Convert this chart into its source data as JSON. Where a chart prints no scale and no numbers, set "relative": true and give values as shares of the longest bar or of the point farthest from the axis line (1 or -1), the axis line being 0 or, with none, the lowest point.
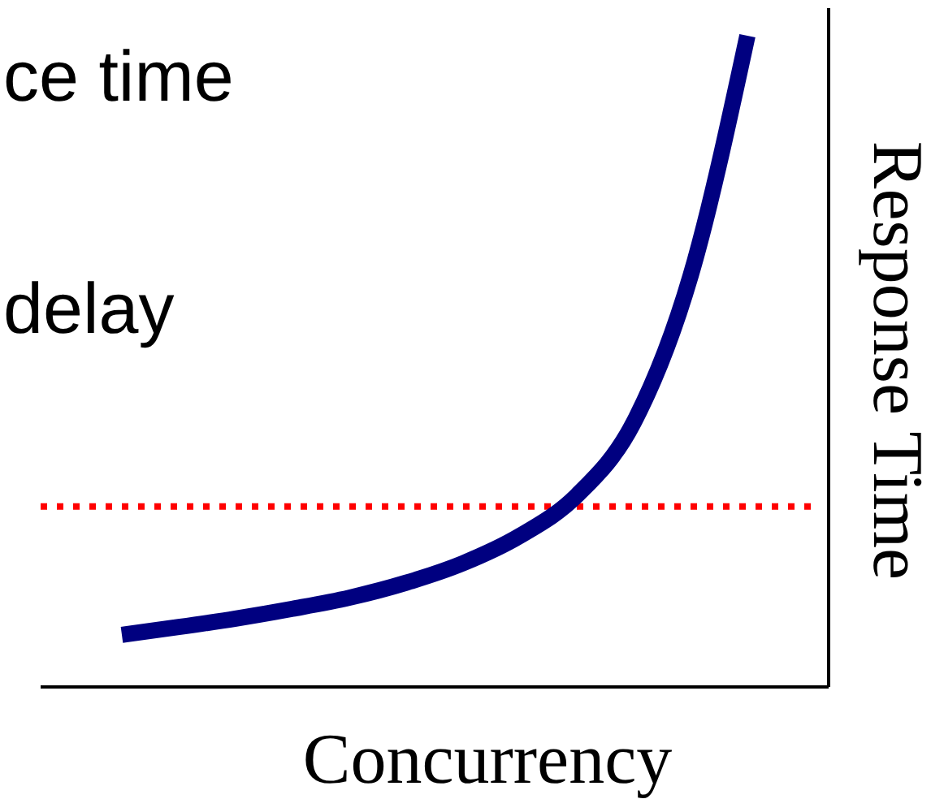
{
  "chart_data": {
    "type": "line",
    "relative": true,
    "xlabel": "Concurrency",
    "ylabel": "Response Time",
    "annotations": [
      "ce time",
      "delay"
    ],
    "categories": [
      null,
      null,
      null,
      null,
      null,
      null,
      null,
      null,
      null,
      null,
      null,
      null
    ],
    "series": [
      {
        "color": "#000080",
        "values": [
          0.08,
          0.092,
          0.105,
          0.12,
          0.137,
          0.16,
          0.19,
          0.232,
          0.294,
          0.406,
          0.631,
          1
        ]
      }
    ],
    "ref_lines": [
      {
        "axis": "y",
        "value": 0.277,
        "color": "#ff0000",
        "line_style": "dotted"
      }
    ],
    "line_style": "solid",
    "marker": "none"
  }
}
